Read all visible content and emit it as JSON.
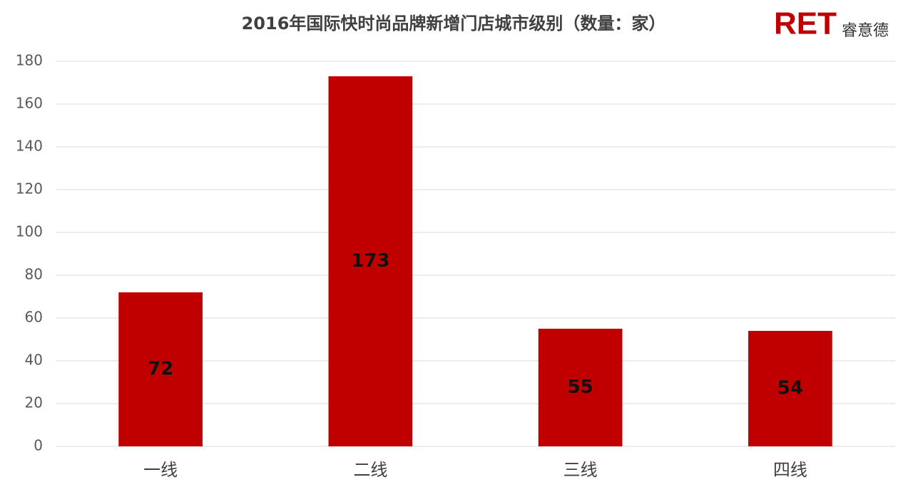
{
  "chart_data": {
    "type": "bar",
    "title": "2016年国际快时尚品牌新增门店城市级别（数量：家）",
    "categories": [
      "一线",
      "二线",
      "三线",
      "四线"
    ],
    "values": [
      72,
      173,
      55,
      54
    ],
    "color": "#c00000",
    "ylim": [
      0,
      180
    ],
    "yticks": [
      0,
      20,
      40,
      60,
      80,
      100,
      120,
      140,
      160,
      180
    ],
    "grid": true
  },
  "logo": {
    "mark": "RET",
    "name": "睿意德"
  }
}
